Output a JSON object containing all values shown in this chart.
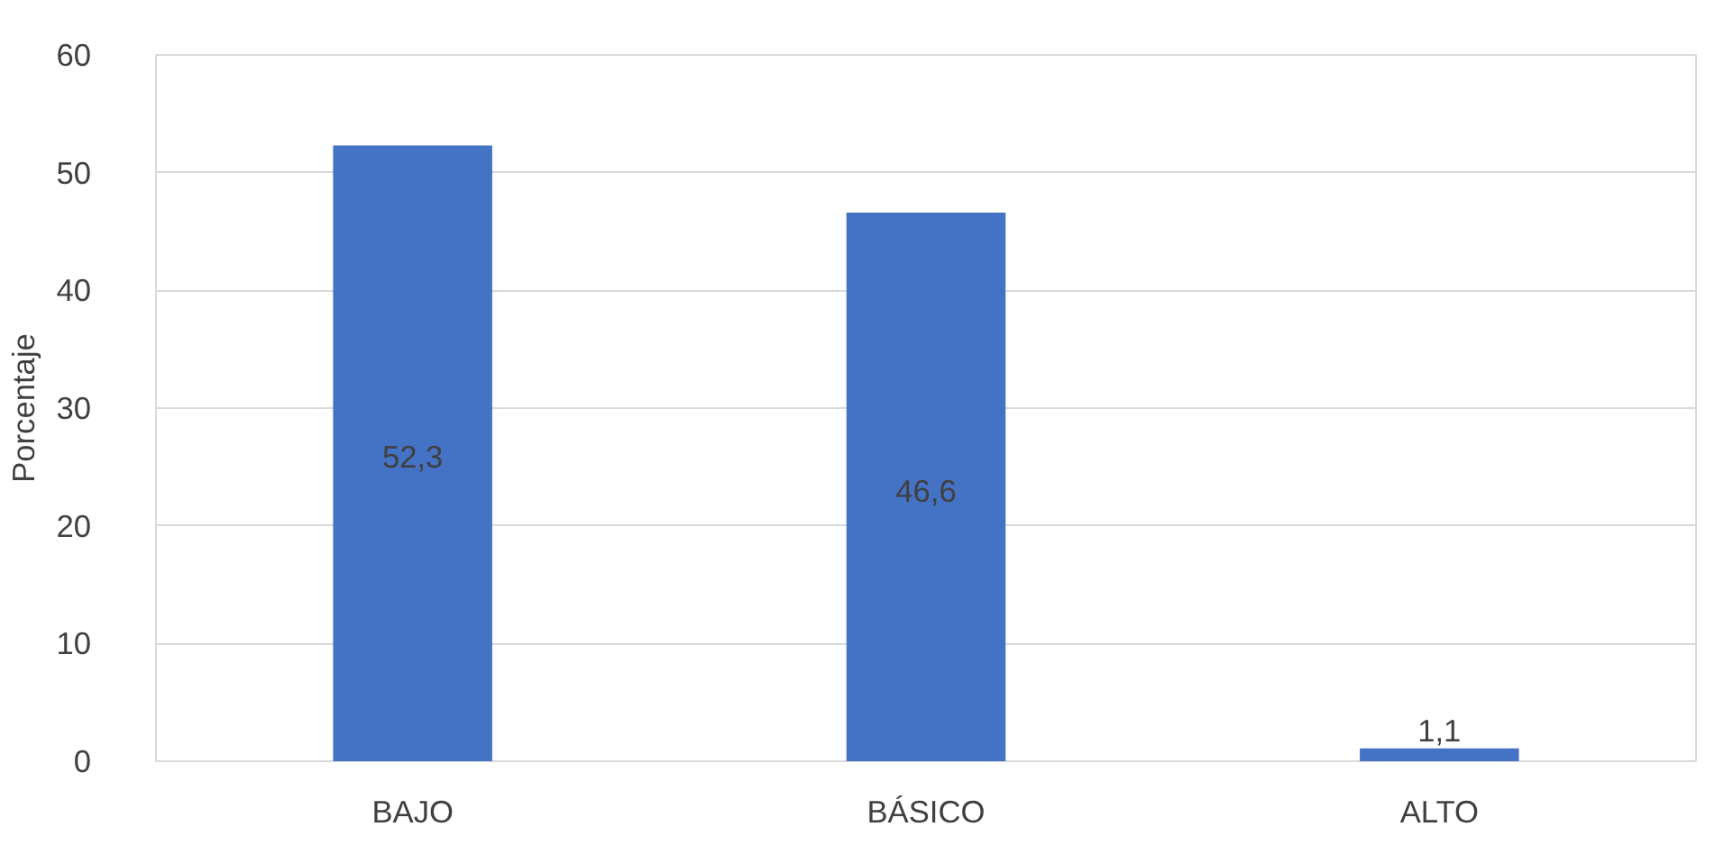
{
  "chart_data": {
    "type": "bar",
    "ylabel": "Porcentaje",
    "categories": [
      "BAJO",
      "BÁSICO",
      "ALTO"
    ],
    "values": [
      52.3,
      46.6,
      1.1
    ],
    "value_labels": [
      "52,3",
      "46,6",
      "1,1"
    ],
    "color": "#4472c4",
    "ylim": [
      0,
      60
    ],
    "yticks": [
      0,
      10,
      20,
      30,
      40,
      50,
      60
    ],
    "grid": "y"
  }
}
